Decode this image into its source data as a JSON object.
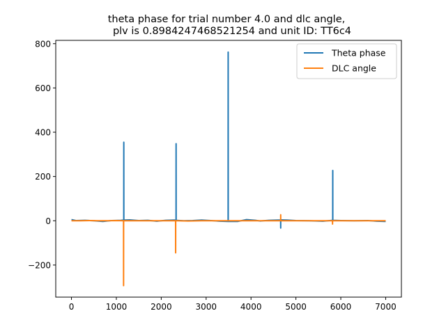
{
  "chart_data": {
    "type": "line",
    "title_line1": "theta phase for trial number 4.0 and dlc angle,",
    "title_line2": "plv is 0.8984247468521254 and unit ID: TT6c4",
    "xlabel": "",
    "ylabel": "",
    "xlim": [
      -350,
      7350
    ],
    "ylim": [
      -345,
      815
    ],
    "x_ticks": [
      0,
      1000,
      2000,
      3000,
      4000,
      5000,
      6000,
      7000
    ],
    "x_tick_labels": [
      "0",
      "1000",
      "2000",
      "3000",
      "4000",
      "5000",
      "6000",
      "7000"
    ],
    "y_ticks": [
      -200,
      0,
      200,
      400,
      600,
      800
    ],
    "y_tick_labels": [
      "−200",
      "0",
      "200",
      "400",
      "600",
      "800"
    ],
    "grid": false,
    "legend_position": "top-right",
    "series": [
      {
        "name": "Theta phase",
        "color": "#1f77b4",
        "points": [
          [
            0,
            5
          ],
          [
            100,
            1
          ],
          [
            300,
            2
          ],
          [
            500,
            0
          ],
          [
            700,
            -3
          ],
          [
            900,
            1
          ],
          [
            1100,
            2
          ],
          [
            1165,
            3
          ],
          [
            1166,
            355
          ],
          [
            1167,
            3
          ],
          [
            1300,
            4
          ],
          [
            1500,
            1
          ],
          [
            1700,
            2
          ],
          [
            1900,
            -2
          ],
          [
            2100,
            2
          ],
          [
            2300,
            3
          ],
          [
            2330,
            2
          ],
          [
            2331,
            348
          ],
          [
            2332,
            2
          ],
          [
            2500,
            0
          ],
          [
            2700,
            1
          ],
          [
            2900,
            3
          ],
          [
            3100,
            1
          ],
          [
            3300,
            -2
          ],
          [
            3490,
            -3
          ],
          [
            3491,
            762
          ],
          [
            3492,
            -3
          ],
          [
            3700,
            -3
          ],
          [
            3900,
            5
          ],
          [
            4100,
            2
          ],
          [
            4200,
            -1
          ],
          [
            4400,
            2
          ],
          [
            4600,
            3
          ],
          [
            4660,
            3
          ],
          [
            4661,
            -33
          ],
          [
            4662,
            4
          ],
          [
            4800,
            3
          ],
          [
            5000,
            1
          ],
          [
            5300,
            0
          ],
          [
            5600,
            -2
          ],
          [
            5820,
            2
          ],
          [
            5821,
            227
          ],
          [
            5822,
            2
          ],
          [
            6000,
            1
          ],
          [
            6300,
            0
          ],
          [
            6600,
            1
          ],
          [
            6800,
            -2
          ],
          [
            7000,
            -3
          ]
        ]
      },
      {
        "name": "DLC angle",
        "color": "#ff7f0e",
        "points": [
          [
            0,
            0
          ],
          [
            200,
            0
          ],
          [
            400,
            1
          ],
          [
            600,
            0
          ],
          [
            800,
            0
          ],
          [
            1000,
            1
          ],
          [
            1160,
            0
          ],
          [
            1161,
            -293
          ],
          [
            1162,
            0
          ],
          [
            1400,
            0
          ],
          [
            1700,
            0
          ],
          [
            2000,
            0
          ],
          [
            2320,
            0
          ],
          [
            2321,
            -145
          ],
          [
            2322,
            0
          ],
          [
            2600,
            -1
          ],
          [
            2900,
            0
          ],
          [
            3200,
            0
          ],
          [
            3500,
            0
          ],
          [
            3800,
            0
          ],
          [
            4100,
            0
          ],
          [
            4400,
            0
          ],
          [
            4660,
            0
          ],
          [
            4661,
            27
          ],
          [
            4662,
            0
          ],
          [
            5000,
            0
          ],
          [
            5400,
            0
          ],
          [
            5815,
            0
          ],
          [
            5816,
            -15
          ],
          [
            5817,
            0
          ],
          [
            6200,
            0
          ],
          [
            6600,
            0
          ],
          [
            7000,
            0
          ]
        ]
      }
    ]
  }
}
